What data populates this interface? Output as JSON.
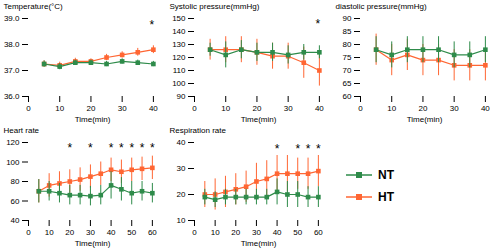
{
  "chart_data": [
    {
      "type": "line",
      "xlabel": "Time(min)",
      "ylabel": "Temperature(°C)",
      "x": [
        5,
        10,
        15,
        20,
        25,
        30,
        35,
        40
      ],
      "xlim": [
        0,
        41
      ],
      "xticks": [
        0,
        10,
        20,
        30,
        40
      ],
      "ylim": [
        36,
        39
      ],
      "yticks": [
        36,
        37,
        38,
        39
      ],
      "grid": false,
      "series": [
        {
          "name": "NT",
          "color": "#2e8b4a",
          "marker": "square",
          "line_style": "solid",
          "values": [
            37.25,
            37.15,
            37.3,
            37.3,
            37.25,
            37.35,
            37.3,
            37.25
          ],
          "errors": [
            0.12,
            0.12,
            0.1,
            0.1,
            0.1,
            0.1,
            0.1,
            0.1
          ]
        },
        {
          "name": "HT",
          "color": "#ff6633",
          "marker": "square",
          "line_style": "solid",
          "values": [
            37.25,
            37.2,
            37.35,
            37.35,
            37.5,
            37.6,
            37.7,
            37.8
          ],
          "errors": [
            0.12,
            0.12,
            0.12,
            0.1,
            0.12,
            0.12,
            0.15,
            0.15
          ]
        }
      ],
      "annotations": [
        {
          "text": "*",
          "x": 39.5,
          "y": 38.85
        }
      ]
    },
    {
      "type": "line",
      "xlabel": "Time(min)",
      "ylabel": "Systolic pressure(mmHg)",
      "x": [
        5,
        10,
        15,
        20,
        25,
        30,
        35,
        40
      ],
      "xlim": [
        0,
        41
      ],
      "xticks": [
        0,
        10,
        20,
        30,
        40
      ],
      "ylim": [
        90,
        150
      ],
      "yticks": [
        90,
        100,
        110,
        120,
        130,
        140,
        150
      ],
      "grid": false,
      "series": [
        {
          "name": "NT",
          "color": "#2e8b4a",
          "marker": "square",
          "line_style": "solid",
          "values": [
            126,
            122,
            126,
            124,
            124,
            122,
            124,
            124
          ],
          "errors": [
            5,
            10,
            7,
            7,
            7,
            7,
            6,
            5
          ]
        },
        {
          "name": "HT",
          "color": "#ff6633",
          "marker": "square",
          "line_style": "solid",
          "values": [
            126,
            126,
            126,
            124,
            121,
            121,
            116,
            110
          ],
          "errors": [
            8,
            10,
            10,
            10,
            10,
            10,
            12,
            12
          ]
        }
      ],
      "annotations": [
        {
          "text": "*",
          "x": 39.5,
          "y": 148
        }
      ]
    },
    {
      "type": "line",
      "xlabel": "Time(min)",
      "ylabel": "diastolic pressure(mmHg)",
      "x": [
        5,
        10,
        15,
        20,
        25,
        30,
        35,
        40
      ],
      "xlim": [
        0,
        41
      ],
      "xticks": [
        0,
        10,
        20,
        30,
        40
      ],
      "ylim": [
        60,
        90
      ],
      "yticks": [
        60,
        65,
        70,
        75,
        80,
        85,
        90
      ],
      "grid": false,
      "series": [
        {
          "name": "NT",
          "color": "#2e8b4a",
          "marker": "square",
          "line_style": "solid",
          "values": [
            78,
            76,
            78,
            78,
            78,
            76,
            76,
            78
          ],
          "errors": [
            5,
            5,
            5,
            5,
            5,
            5,
            5,
            5
          ]
        },
        {
          "name": "HT",
          "color": "#ff6633",
          "marker": "square",
          "line_style": "solid",
          "values": [
            78,
            74,
            76,
            74,
            74,
            72,
            72,
            72
          ],
          "errors": [
            6,
            6,
            6,
            6,
            6,
            6,
            6,
            6
          ]
        }
      ],
      "annotations": []
    },
    {
      "type": "line",
      "xlabel": "Time(min)",
      "ylabel": "Heart rate",
      "x": [
        5,
        10,
        15,
        20,
        25,
        30,
        35,
        40,
        45,
        50,
        55,
        60
      ],
      "xlim": [
        0,
        62
      ],
      "xticks": [
        0,
        10,
        20,
        30,
        40,
        50,
        60
      ],
      "ylim": [
        40,
        120
      ],
      "yticks": [
        40,
        60,
        80,
        100,
        120
      ],
      "grid": false,
      "series": [
        {
          "name": "NT",
          "color": "#2e8b4a",
          "marker": "square",
          "line_style": "solid",
          "values": [
            70,
            70,
            68,
            66,
            66,
            65,
            66,
            76,
            72,
            68,
            70,
            68
          ],
          "errors": [
            12,
            10,
            10,
            10,
            10,
            10,
            10,
            14,
            12,
            12,
            10,
            10
          ]
        },
        {
          "name": "HT",
          "color": "#ff6633",
          "marker": "square",
          "line_style": "solid",
          "values": [
            70,
            76,
            78,
            80,
            82,
            85,
            88,
            92,
            90,
            92,
            93,
            94
          ],
          "errors": [
            12,
            12,
            12,
            12,
            12,
            12,
            12,
            12,
            12,
            12,
            12,
            12
          ]
        }
      ],
      "annotations": [
        {
          "text": "*",
          "x": 20,
          "y": 117
        },
        {
          "text": "*",
          "x": 30,
          "y": 117
        },
        {
          "text": "*",
          "x": 40,
          "y": 117
        },
        {
          "text": "*",
          "x": 45,
          "y": 117
        },
        {
          "text": "*",
          "x": 50,
          "y": 117
        },
        {
          "text": "*",
          "x": 55,
          "y": 117
        },
        {
          "text": "*",
          "x": 60,
          "y": 117
        }
      ]
    },
    {
      "type": "line",
      "xlabel": "Time(min)",
      "ylabel": "Respiration rate",
      "x": [
        5,
        10,
        15,
        20,
        25,
        30,
        35,
        40,
        45,
        50,
        55,
        60
      ],
      "xlim": [
        0,
        62
      ],
      "xticks": [
        0,
        10,
        20,
        30,
        40,
        50,
        60
      ],
      "ylim": [
        10,
        40
      ],
      "yticks": [
        10,
        20,
        30,
        40
      ],
      "grid": false,
      "legend": "right",
      "series": [
        {
          "name": "NT",
          "color": "#2e8b4a",
          "marker": "square",
          "line_style": "solid",
          "values": [
            19,
            18,
            19,
            19,
            19,
            19,
            19,
            21,
            20,
            20,
            19,
            19
          ],
          "errors": [
            3,
            3,
            3,
            3,
            3,
            3,
            3,
            5,
            5,
            5,
            4,
            4
          ]
        },
        {
          "name": "HT",
          "color": "#ff6633",
          "marker": "square",
          "line_style": "solid",
          "values": [
            20,
            20,
            21,
            22,
            23,
            25,
            26,
            28,
            28,
            28,
            28,
            29
          ],
          "errors": [
            5,
            6,
            6,
            6,
            6,
            7,
            7,
            7,
            7,
            6,
            6,
            6
          ]
        }
      ],
      "annotations": [
        {
          "text": "*",
          "x": 40,
          "y": 38.5
        },
        {
          "text": "*",
          "x": 50,
          "y": 38.5
        },
        {
          "text": "*",
          "x": 55,
          "y": 38.5
        },
        {
          "text": "*",
          "x": 60,
          "y": 38.5
        }
      ]
    }
  ]
}
